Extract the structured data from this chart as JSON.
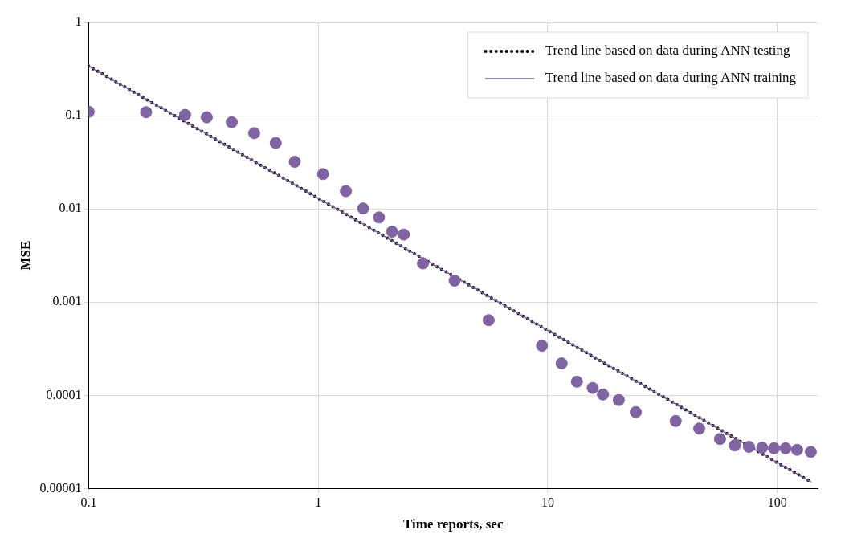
{
  "chart_data": {
    "type": "scatter",
    "xlabel": "Time reports, sec",
    "ylabel": "MSE",
    "log": "xy",
    "grid": true,
    "legend": "top right",
    "xlim": [
      0.1,
      150
    ],
    "xticks": [
      0.1,
      1,
      10,
      100
    ],
    "ylim": [
      1e-05,
      1
    ],
    "yticks": [
      {
        "value": 1e-05,
        "label": "0.00001"
      },
      0.0001,
      0.001,
      0.01,
      0.1,
      1
    ],
    "series": [
      {
        "name": "Trend line based on data during ANN testing",
        "type": "line",
        "color": "#000000",
        "line_style": "dotted",
        "marker": "none",
        "x": [
          0.1,
          140
        ],
        "values": [
          0.34,
          1.18e-05
        ]
      },
      {
        "name": "Trend line based on data during ANN training",
        "type": "line",
        "color": "#8064a2",
        "line_style": "solid",
        "marker": "none",
        "x": [
          0.1,
          140
        ],
        "values": [
          0.34,
          1.18e-05
        ]
      },
      {
        "type": "scatter",
        "color": "#8064a2",
        "marker": "circle",
        "x": [
          0.1,
          0.178,
          0.263,
          0.327,
          0.42,
          0.526,
          0.653,
          0.79,
          1.05,
          1.32,
          1.57,
          1.84,
          2.1,
          2.36,
          2.86,
          3.93,
          5.53,
          9.44,
          11.5,
          13.4,
          15.7,
          17.4,
          20.4,
          24.2,
          36.1,
          45.7,
          56.3,
          65.3,
          75.3,
          86,
          96.8,
          108.7,
          122,
          140
        ],
        "values": [
          0.11,
          0.109,
          0.102,
          0.096,
          0.085,
          0.065,
          0.051,
          0.032,
          0.0236,
          0.0155,
          0.0101,
          0.0081,
          0.0057,
          0.0053,
          0.0026,
          0.0017,
          0.00064,
          0.00034,
          0.00022,
          0.00014,
          0.00012,
          0.000102,
          8.9e-05,
          6.6e-05,
          5.3e-05,
          4.4e-05,
          3.4e-05,
          2.9e-05,
          2.8e-05,
          2.75e-05,
          2.7e-05,
          2.7e-05,
          2.6e-05,
          2.47e-05
        ]
      }
    ]
  }
}
